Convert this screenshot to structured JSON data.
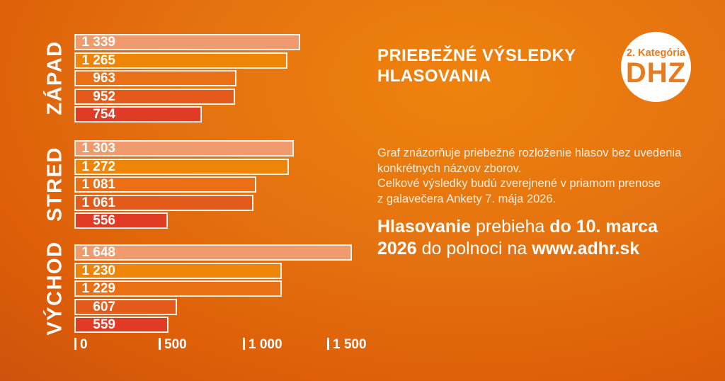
{
  "header": {
    "title": "PRIEBEŽNÉ VÝSLEDKY HLASOVANIA"
  },
  "badge": {
    "category": "2. Kategória",
    "acronym": "DHZ",
    "text_color": "#E87B1E",
    "bg_color": "#FFFFFF"
  },
  "description": {
    "lines": [
      "Graf znázorňuje priebežné rozloženie hlasov bez uvedenia",
      "konkrétnych názvov zborov.",
      "Celkové výsledky budú zverejnené v priamom prenose",
      "z galavečera Ankety 7. mája 2026."
    ]
  },
  "cta": {
    "segments": [
      {
        "text": "Hlasovanie",
        "bold": true
      },
      {
        "text": " prebieha ",
        "bold": false
      },
      {
        "text": "do 10. marca 2026",
        "bold": true
      },
      {
        "text": " do polnoci na ",
        "bold": false
      },
      {
        "text": "www.adhr.sk",
        "bold": true,
        "name": "website-url"
      }
    ]
  },
  "chart_data": {
    "type": "bar",
    "orientation": "horizontal",
    "title": "PRIEBEŽNÉ VÝSLEDKY HLASOVANIA",
    "xlabel": "",
    "ylabel": "",
    "xlim": [
      0,
      1500
    ],
    "x_ticks": [
      0,
      500,
      1000,
      1500
    ],
    "x_tick_labels": [
      "0",
      "500",
      "1 000",
      "1 500"
    ],
    "grid": false,
    "legend": "none",
    "value_labels": "inside bar, left side, right-aligned, thousands separated by space",
    "bar_colors": [
      "#F09B6D",
      "#EF8506",
      "#EA6F15",
      "#E45A1B",
      "#E03B24"
    ],
    "bar_border_color": "#FBF3E9",
    "groups": [
      {
        "label": "ZÁPAD",
        "values": [
          1339,
          1265,
          963,
          952,
          754
        ]
      },
      {
        "label": "STRED",
        "values": [
          1303,
          1272,
          1081,
          1061,
          556
        ]
      },
      {
        "label": "VÝCHOD",
        "values": [
          1648,
          1230,
          1229,
          607,
          559
        ]
      }
    ]
  },
  "colors": {
    "background_center": "#EF830C",
    "background_edge": "#BE4610",
    "text": "#FFFFFF"
  }
}
